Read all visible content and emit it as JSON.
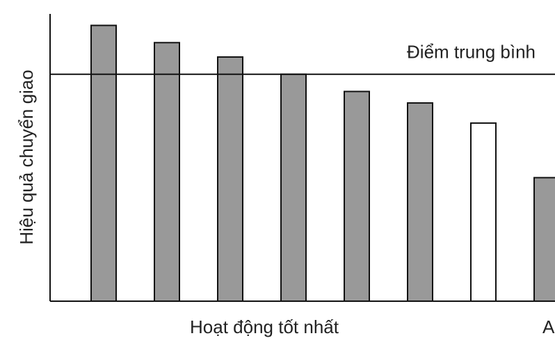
{
  "chart_data": {
    "type": "bar",
    "ylabel": "Hiệu quả chuyển giao",
    "xlabel": "Hoạt động tốt nhất",
    "xlabel_2": "A",
    "categories": [
      null,
      null,
      null,
      null,
      null,
      null,
      null,
      null
    ],
    "values": [
      96,
      90,
      85,
      79,
      73,
      69,
      62,
      43
    ],
    "colors": [
      "#999999",
      "#999999",
      "#999999",
      "#999999",
      "#999999",
      "#999999",
      "#ffffff",
      "#999999"
    ],
    "ylim": [
      0,
      100
    ],
    "reference_line": {
      "label": "Điểm trung bình",
      "value": 79
    }
  }
}
